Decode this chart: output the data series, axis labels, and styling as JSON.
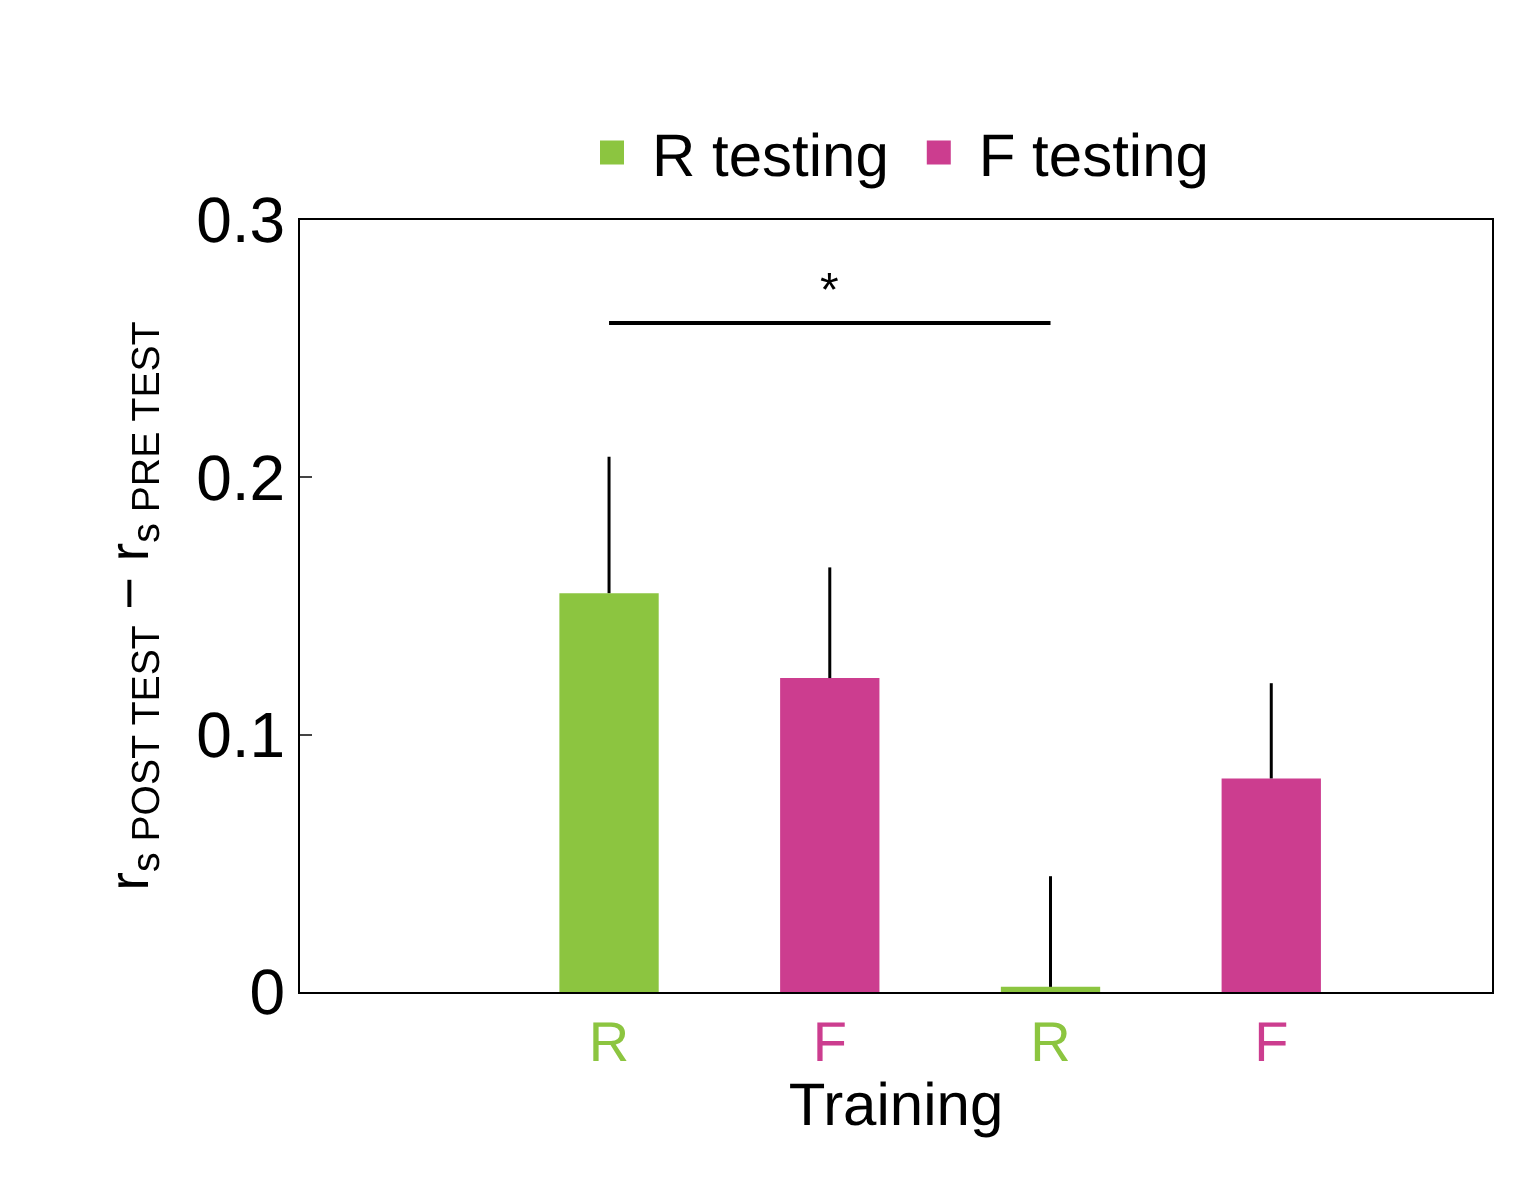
{
  "chart_data": {
    "type": "bar",
    "xlabel": "Training",
    "ylabel": "r$_{s POST TEST}$ − r$_{s PRE TEST}$",
    "categories": [
      "R",
      "F",
      "R",
      "F"
    ],
    "series": [
      {
        "name": "R testing",
        "color": "#8cc540",
        "values": [
          0.155,
          null,
          0.002,
          null
        ],
        "errors": [
          [
            0.155,
            0.208
          ],
          null,
          [
            0.002,
            0.045
          ],
          null
        ]
      },
      {
        "name": "F testing",
        "color": "#cc3d8f",
        "values": [
          null,
          0.122,
          null,
          0.083
        ],
        "errors": [
          null,
          [
            0.122,
            0.165
          ],
          null,
          [
            0.083,
            0.12
          ]
        ]
      }
    ],
    "ylim": [
      0,
      0.3
    ],
    "yticks": [
      0,
      0.1,
      0.2,
      0.3
    ],
    "legend": "top",
    "annotations": [
      "*"
    ]
  }
}
